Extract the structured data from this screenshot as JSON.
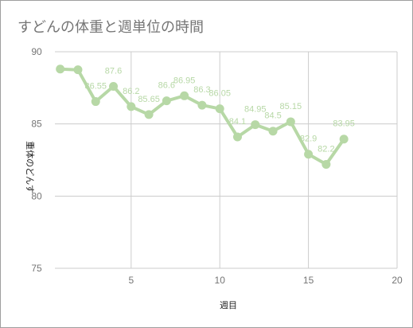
{
  "chart_data": {
    "type": "line",
    "title": "すどんの体重と週単位の時間",
    "xlabel": "週目",
    "ylabel": "重体のどんす",
    "x": [
      1,
      2,
      3,
      4,
      5,
      6,
      7,
      8,
      9,
      10,
      11,
      12,
      13,
      14,
      15,
      16,
      17
    ],
    "values": [
      88.8,
      88.75,
      86.55,
      87.6,
      86.2,
      85.65,
      86.6,
      86.95,
      86.3,
      86.05,
      84.1,
      84.95,
      84.5,
      85.15,
      82.9,
      82.2,
      83.95
    ],
    "labels": [
      "",
      "",
      "86.55",
      "87.6",
      "86.2",
      "85.65",
      "86.6",
      "86.95",
      "86.3",
      "86.05",
      "84.1",
      "84.95",
      "84.5",
      "85.15",
      "82.9",
      "82.2",
      "83.95"
    ],
    "xlim": [
      0.7,
      20
    ],
    "ylim": [
      75,
      90
    ],
    "xticks": [
      "5",
      "10",
      "15",
      "20"
    ],
    "yticks": [
      "75",
      "80",
      "85",
      "90"
    ],
    "grid": true,
    "legend": "none",
    "series_color": "#b7d8a6"
  }
}
